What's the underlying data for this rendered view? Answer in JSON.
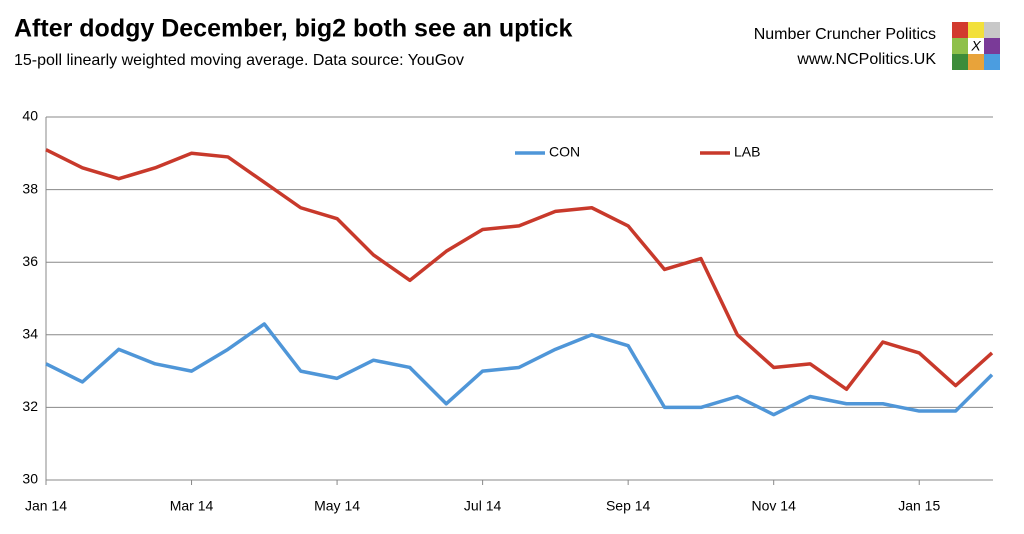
{
  "chart_data": {
    "type": "line",
    "title": "After dodgy December, big2 both see an uptick",
    "subtitle": "15-poll linearly weighted moving average. Data source: YouGov",
    "brand": "Number Cruncher Politics",
    "website": "www.NCPolitics.UK",
    "logo_text": "X",
    "categories": [
      "Jan 14",
      null,
      null,
      null,
      "Mar 14",
      null,
      null,
      null,
      "May 14",
      null,
      null,
      null,
      "Jul 14",
      null,
      null,
      null,
      "Sep 14",
      null,
      null,
      null,
      "Nov 14",
      null,
      null,
      null,
      "Jan 15",
      null,
      null
    ],
    "series": [
      {
        "name": "CON",
        "color": "#4f96d8",
        "values": [
          33.2,
          32.7,
          33.6,
          33.2,
          33.0,
          33.6,
          34.3,
          33.0,
          32.8,
          33.3,
          33.1,
          32.1,
          33.0,
          33.1,
          33.6,
          34.0,
          33.7,
          32.0,
          32.0,
          32.3,
          31.8,
          32.3,
          32.1,
          32.1,
          31.9,
          31.9,
          32.9
        ]
      },
      {
        "name": "LAB",
        "color": "#c8392b",
        "values": [
          39.1,
          38.6,
          38.3,
          38.6,
          39.0,
          38.9,
          38.2,
          37.5,
          37.2,
          36.2,
          35.5,
          36.3,
          36.9,
          37.0,
          37.4,
          37.5,
          37.0,
          35.8,
          36.1,
          34.0,
          33.1,
          33.2,
          32.5,
          33.8,
          33.5,
          32.6,
          33.5
        ]
      }
    ],
    "ylim": [
      30,
      40
    ],
    "yticks": [
      30,
      32,
      34,
      36,
      38,
      40
    ],
    "grid": true
  }
}
